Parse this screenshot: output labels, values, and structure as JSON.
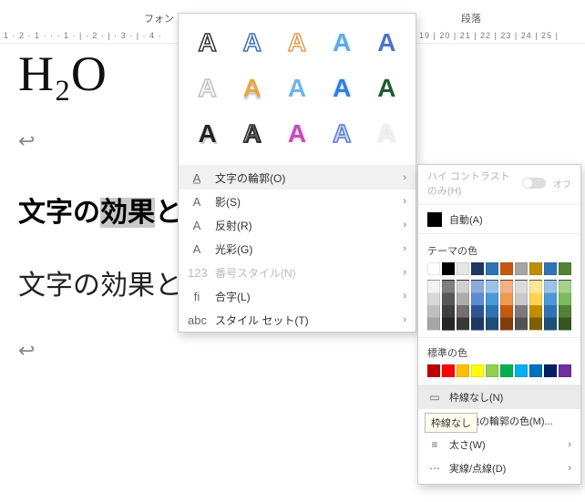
{
  "topLabels": {
    "font": "フォン",
    "paragraph": "段落"
  },
  "ruler": {
    "segA": "1 · 2 · 1 · · · 1 · | · 2 · | · 3 · | · 4 ·",
    "segB": "19   | 20     | 21   | 22   | 23   | 24   | 25   |"
  },
  "doc": {
    "chem": "H₂O",
    "return": "↩",
    "headingBoldPre": "文字の",
    "headingBoldSel": "効果",
    "headingBoldPost": "と",
    "headingPlain": "文字の効果と"
  },
  "effectsGrid": [
    {
      "txt": "A",
      "color": "#333333",
      "style": "stroke",
      "shadow": ""
    },
    {
      "txt": "A",
      "color": "#3d6db5",
      "style": "stroke",
      "shadow": ""
    },
    {
      "txt": "A",
      "color": "#e89a4f",
      "style": "stroke",
      "shadow": ""
    },
    {
      "txt": "A",
      "color": "#5fa9e8",
      "style": "fill",
      "shadow": "0 0 4px #cfe6fb"
    },
    {
      "txt": "A",
      "color": "#4a74c9",
      "style": "fill",
      "shadow": ""
    },
    {
      "txt": "A",
      "color": "#bfbfbf",
      "style": "stroke",
      "shadow": ""
    },
    {
      "txt": "A",
      "color": "#e8a641",
      "style": "fill",
      "shadow": "0 3px 2px rgba(0,0,0,0.25)"
    },
    {
      "txt": "A",
      "color": "#6fb3ea",
      "style": "fill",
      "shadow": ""
    },
    {
      "txt": "A",
      "color": "#2f7de0",
      "style": "fill",
      "shadow": "0 0 3px #9cc7f3"
    },
    {
      "txt": "A",
      "color": "#1d5d2f",
      "style": "fill",
      "shadow": ""
    },
    {
      "txt": "A",
      "color": "#222222",
      "style": "fill",
      "shadow": "2px 2px 0 #cfcfcf"
    },
    {
      "txt": "A",
      "color": "#222222",
      "style": "stroke",
      "shadow": "1px 1px 0 #5e5e5e"
    },
    {
      "txt": "A",
      "color": "#c24db3",
      "style": "fill",
      "shadow": "0 0 4px #e7b6e0"
    },
    {
      "txt": "A",
      "color": "#5d7bd4",
      "style": "stroke",
      "shadow": "0 0 3px #c6cff0"
    },
    {
      "txt": "A",
      "color": "#efefef",
      "style": "fill",
      "shadow": "0 0 4px #d9d9d9"
    }
  ],
  "menuItems": [
    {
      "icon": "A̲",
      "label": "文字の輪郭(O)",
      "arrow": true,
      "hl": true,
      "dis": false,
      "name": "menu-outline"
    },
    {
      "icon": "A",
      "label": "影(S)",
      "arrow": true,
      "hl": false,
      "dis": false,
      "name": "menu-shadow"
    },
    {
      "icon": "A",
      "label": "反射(R)",
      "arrow": true,
      "hl": false,
      "dis": false,
      "name": "menu-reflection"
    },
    {
      "icon": "A",
      "label": "光彩(G)",
      "arrow": true,
      "hl": false,
      "dis": false,
      "name": "menu-glow"
    },
    {
      "icon": "123",
      "label": "番号スタイル(N)",
      "arrow": true,
      "hl": false,
      "dis": true,
      "name": "menu-number-style"
    },
    {
      "icon": "fi",
      "label": "合字(L)",
      "arrow": true,
      "hl": false,
      "dis": false,
      "name": "menu-ligature"
    },
    {
      "icon": "abc",
      "label": "スタイル セット(T)",
      "arrow": true,
      "hl": false,
      "dis": false,
      "name": "menu-style-set"
    }
  ],
  "outlinePanel": {
    "hcLabel": "ハイ コントラストのみ(H)",
    "hcState": "オフ",
    "autoLabel": "自動(A)",
    "autoColor": "#000000",
    "themeTitle": "テーマの色",
    "themeRow": [
      "#ffffff",
      "#000000",
      "#e7e6e6",
      "#1f3763",
      "#2e74b5",
      "#c45a10",
      "#a5a5a5",
      "#bf8f00",
      "#2e74b5",
      "#548235"
    ],
    "themeTints": [
      [
        "#f2f2f2",
        "#7f7f7f",
        "#d0cece",
        "#8eaadb",
        "#9cc3e5",
        "#f4b183",
        "#dbdbdb",
        "#ffe699",
        "#9cc3e5",
        "#a8d08d"
      ],
      [
        "#d8d8d8",
        "#595959",
        "#aeabab",
        "#5b8bd5",
        "#4a98d8",
        "#ed9a53",
        "#c9c9c9",
        "#ffd34d",
        "#4a98d8",
        "#7cbb5e"
      ],
      [
        "#bfbfbf",
        "#3f3f3f",
        "#757070",
        "#2f5496",
        "#2e74b5",
        "#c45a10",
        "#7b7b7b",
        "#bf8f00",
        "#2e74b5",
        "#548235"
      ],
      [
        "#a5a5a5",
        "#262626",
        "#3a3838",
        "#1f3763",
        "#1e4e79",
        "#833c0b",
        "#525252",
        "#7f6000",
        "#1e4e79",
        "#375623"
      ]
    ],
    "stdTitle": "標準の色",
    "stdRow": [
      "#c00000",
      "#ff0000",
      "#ffc000",
      "#ffff00",
      "#92d050",
      "#00b050",
      "#00b0f0",
      "#0070c0",
      "#002060",
      "#7030a0"
    ],
    "items": [
      {
        "icon": "▭",
        "label": "枠線なし(N)",
        "arrow": false,
        "hl": true,
        "name": "sub-no-outline"
      },
      {
        "icon": "🎨",
        "label": "その他の輪郭の色(M)...",
        "arrow": false,
        "hl": false,
        "name": "sub-more-colors"
      },
      {
        "icon": "≡",
        "label": "太さ(W)",
        "arrow": true,
        "hl": false,
        "name": "sub-weight"
      },
      {
        "icon": "⋯",
        "label": "実線/点線(D)",
        "arrow": true,
        "hl": false,
        "name": "sub-dashes"
      }
    ],
    "tooltip": "枠線なし"
  }
}
